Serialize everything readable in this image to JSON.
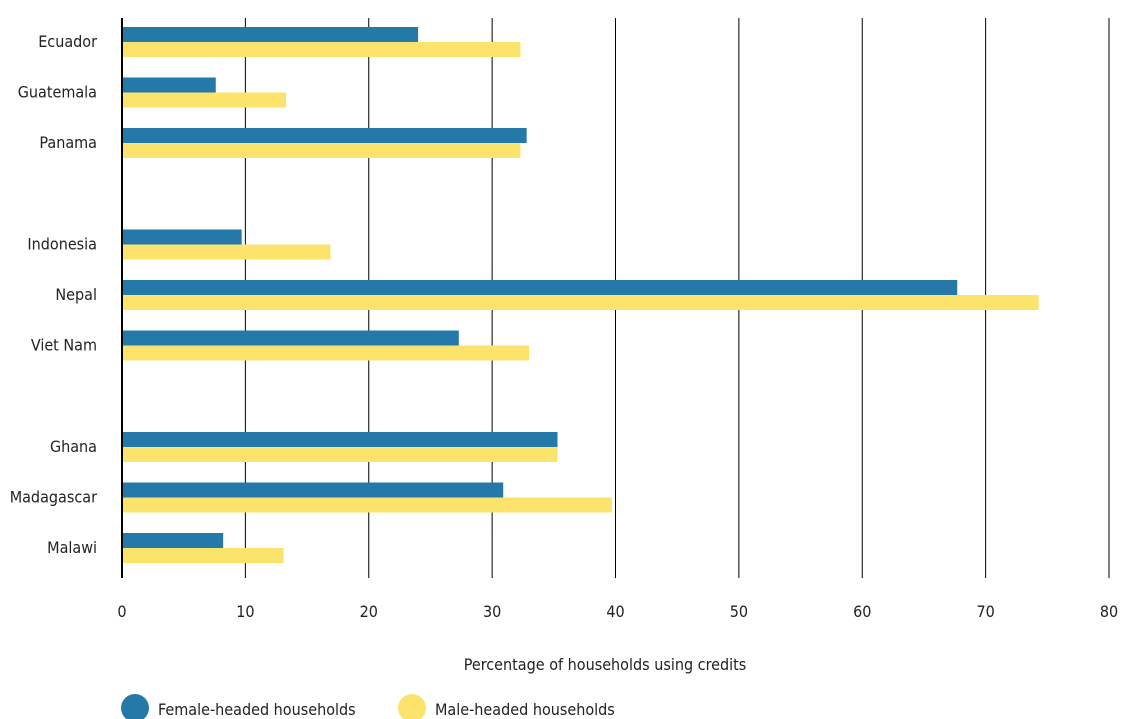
{
  "chart_data": {
    "type": "bar",
    "orientation": "horizontal",
    "categories": [
      "Ecuador",
      "Guatemala",
      "Panama",
      "Indonesia",
      "Nepal",
      "Viet Nam",
      "Ghana",
      "Madagascar",
      "Malawi"
    ],
    "groups": [
      [
        "Ecuador",
        "Guatemala",
        "Panama"
      ],
      [
        "Indonesia",
        "Nepal",
        "Viet Nam"
      ],
      [
        "Ghana",
        "Madagascar",
        "Malawi"
      ]
    ],
    "series": [
      {
        "name": "Female-headed households",
        "color": "#2479a8",
        "values": [
          24.0,
          7.6,
          32.8,
          9.7,
          67.7,
          27.3,
          35.3,
          30.9,
          8.2
        ]
      },
      {
        "name": "Male-headed households",
        "color": "#fce36b",
        "values": [
          32.3,
          13.3,
          32.3,
          16.9,
          74.3,
          33.0,
          35.3,
          39.7,
          13.1
        ]
      }
    ],
    "xlabel": "Percentage of households using credits",
    "ylabel": "",
    "xlim": [
      0,
      80
    ],
    "xticks": [
      "0",
      "10",
      "20",
      "30",
      "40",
      "50",
      "60",
      "70",
      "80"
    ],
    "grid": "vertical",
    "legend": "bottom-left"
  }
}
